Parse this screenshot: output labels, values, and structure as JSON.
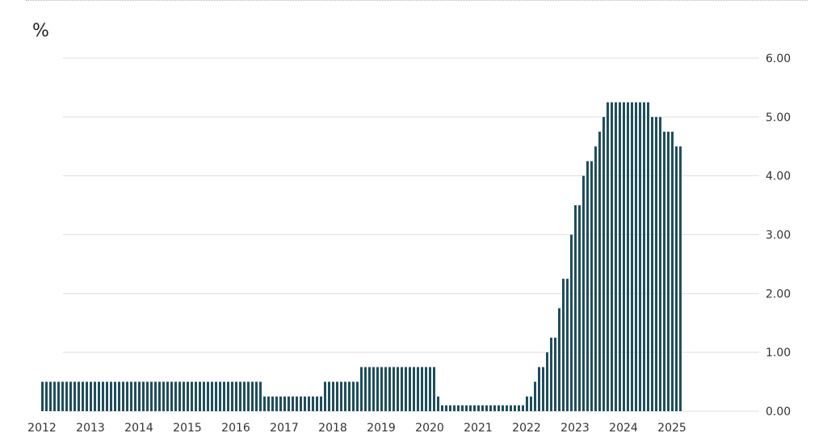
{
  "chart_data": {
    "type": "bar",
    "unit_label": "%",
    "title": "",
    "xlabel": "",
    "ylabel": "%",
    "ylim": [
      0,
      6
    ],
    "grid": true,
    "y_axis_side": "right",
    "y_ticks": [
      "6.00",
      "5.00",
      "4.00",
      "3.00",
      "2.00",
      "1.00",
      "0.00"
    ],
    "x_ticks": [
      "2012",
      "2013",
      "2014",
      "2015",
      "2016",
      "2017",
      "2018",
      "2019",
      "2020",
      "2021",
      "2022",
      "2023",
      "2024",
      "2025"
    ],
    "bar_color": "#1f4e5c",
    "segments": [
      {
        "from": "2012-01",
        "to": "2016-07",
        "value": 0.5
      },
      {
        "from": "2016-08",
        "to": "2017-10",
        "value": 0.25
      },
      {
        "from": "2017-11",
        "to": "2018-07",
        "value": 0.5
      },
      {
        "from": "2018-08",
        "to": "2020-02",
        "value": 0.75
      },
      {
        "from": "2020-03",
        "to": "2020-03",
        "value": 0.25
      },
      {
        "from": "2020-04",
        "to": "2021-12",
        "value": 0.1
      },
      {
        "from": "2022-01",
        "to": "2022-02",
        "value": 0.25
      },
      {
        "from": "2022-03",
        "to": "2022-03",
        "value": 0.5
      },
      {
        "from": "2022-04",
        "to": "2022-05",
        "value": 0.75
      },
      {
        "from": "2022-06",
        "to": "2022-06",
        "value": 1.0
      },
      {
        "from": "2022-07",
        "to": "2022-08",
        "value": 1.25
      },
      {
        "from": "2022-09",
        "to": "2022-09",
        "value": 1.75
      },
      {
        "from": "2022-10",
        "to": "2022-11",
        "value": 2.25
      },
      {
        "from": "2022-12",
        "to": "2022-12",
        "value": 3.0
      },
      {
        "from": "2023-01",
        "to": "2023-02",
        "value": 3.5
      },
      {
        "from": "2023-03",
        "to": "2023-03",
        "value": 4.0
      },
      {
        "from": "2023-04",
        "to": "2023-05",
        "value": 4.25
      },
      {
        "from": "2023-06",
        "to": "2023-06",
        "value": 4.5
      },
      {
        "from": "2023-07",
        "to": "2023-07",
        "value": 4.75
      },
      {
        "from": "2023-08",
        "to": "2023-08",
        "value": 5.0
      },
      {
        "from": "2023-09",
        "to": "2024-07",
        "value": 5.25
      },
      {
        "from": "2024-08",
        "to": "2024-10",
        "value": 5.0
      },
      {
        "from": "2024-11",
        "to": "2025-01",
        "value": 4.75
      },
      {
        "from": "2025-02",
        "to": "2025-03",
        "value": 4.5
      }
    ]
  }
}
